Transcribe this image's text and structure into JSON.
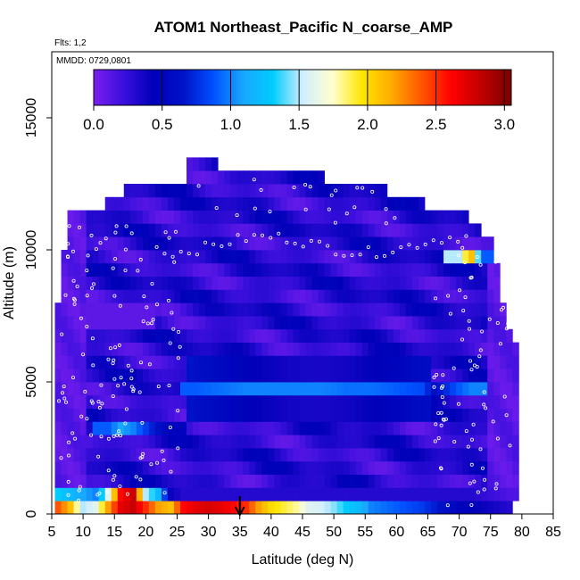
{
  "chart_data": {
    "type": "heatmap",
    "title": "ATOM1 Northeast_Pacific N_coarse_AMP",
    "annotations": {
      "flights": "Flts: 1,2",
      "dates": "MMDD: 0729,0801"
    },
    "xlabel": "Latitude (deg N)",
    "ylabel": "Altitude (m)",
    "xlim": [
      5,
      85
    ],
    "ylim": [
      0,
      17500
    ],
    "xticks": [
      "5",
      "10",
      "15",
      "20",
      "25",
      "30",
      "35",
      "40",
      "45",
      "50",
      "55",
      "60",
      "65",
      "70",
      "75",
      "80",
      "85"
    ],
    "yticks": [
      "0",
      "5000",
      "10000",
      "15000"
    ],
    "colorbar": {
      "ticks": [
        "0.0",
        "0.5",
        "1.0",
        "1.5",
        "2.0",
        "2.5",
        "3.0"
      ],
      "range": [
        0,
        3.05
      ],
      "colors": [
        "#7a1fef",
        "#3a0fdc",
        "#0000b8",
        "#0012c8",
        "#0050ff",
        "#1aa6ff",
        "#00ccff",
        "#cfeeff",
        "#ffffd0",
        "#ffe600",
        "#ffaa00",
        "#ff5500",
        "#ff0000",
        "#c00000",
        "#7a0000"
      ]
    },
    "marker_latitude": 35,
    "grid": false,
    "altitude_bins_m": [
      0,
      500,
      1000,
      1500,
      2000,
      2500,
      3000,
      3500,
      4000,
      4500,
      5000,
      5500,
      6000,
      6500,
      7000,
      7500,
      8000,
      8500,
      9000,
      9500,
      10000,
      10500,
      11000,
      11500,
      12000,
      12500,
      13000
    ],
    "latitude_bin_width": 1,
    "latitude_range_by_band": [
      [
        5.5,
        78.5
      ],
      [
        5.5,
        79.5
      ],
      [
        5.5,
        79.5
      ],
      [
        5.5,
        79.5
      ],
      [
        5.5,
        79.5
      ],
      [
        5.5,
        79.5
      ],
      [
        5.5,
        79.5
      ],
      [
        5.5,
        79.5
      ],
      [
        5.5,
        79.5
      ],
      [
        5.5,
        79.5
      ],
      [
        5.5,
        79.5
      ],
      [
        5.5,
        79.5
      ],
      [
        5.5,
        79.5
      ],
      [
        5.5,
        78.5
      ],
      [
        5.5,
        77.5
      ],
      [
        5.5,
        77.5
      ],
      [
        6.5,
        76.5
      ],
      [
        6.5,
        76.5
      ],
      [
        6.5,
        76.5
      ],
      [
        6.5,
        75.5
      ],
      [
        7.5,
        75.5
      ],
      [
        7.5,
        73.5
      ],
      [
        7.5,
        71.5
      ],
      [
        13.5,
        64.5
      ],
      [
        16.5,
        58.5
      ],
      [
        26.5,
        48.5
      ],
      [
        26.5,
        31.5
      ]
    ],
    "values_by_band": [
      {
        "alt": 0,
        "lat": [
          6,
          8,
          10,
          12,
          14,
          16,
          18,
          20,
          22,
          24,
          26,
          28,
          30,
          32,
          34,
          36,
          38,
          40,
          42,
          44,
          46,
          48,
          50,
          52,
          54,
          56,
          58,
          60,
          62,
          64,
          66,
          68,
          70,
          72,
          74,
          76,
          78
        ],
        "v": [
          2.4,
          2.1,
          1.5,
          1.6,
          2.2,
          2.7,
          2.8,
          2.5,
          2.2,
          2.1,
          2.6,
          2.7,
          2.75,
          2.7,
          2.6,
          2.5,
          2.2,
          2.0,
          1.9,
          1.8,
          1.6,
          1.55,
          1.45,
          1.3,
          1.2,
          1.0,
          0.95,
          0.9,
          0.85,
          0.8,
          0.7,
          0.6,
          0.5,
          0.45,
          0.4,
          0.35,
          0.3
        ]
      },
      {
        "alt": 500,
        "lat": [
          6,
          8,
          10,
          12,
          14,
          16,
          18,
          20,
          22,
          24,
          26,
          28,
          30,
          32,
          34,
          36,
          38,
          40,
          42,
          44,
          46,
          48,
          50,
          52,
          54,
          56,
          58,
          60,
          62,
          64,
          66,
          68,
          70,
          72,
          74,
          76,
          78
        ],
        "v": [
          1.3,
          1.2,
          1.1,
          1.0,
          1.6,
          2.6,
          2.8,
          1.5,
          1.2,
          0.4,
          0.3,
          0.3,
          0.3,
          0.3,
          0.3,
          0.3,
          0.3,
          0.3,
          0.3,
          0.3,
          0.3,
          0.3,
          0.3,
          0.3,
          0.3,
          0.3,
          0.3,
          0.3,
          0.3,
          0.3,
          0.3,
          0.3,
          0.3,
          0.3,
          0.25,
          0.2,
          0.15
        ]
      },
      {
        "alt": 3000,
        "lat": [
          14,
          16,
          18,
          20,
          22,
          24
        ],
        "v": [
          0.9,
          1.1,
          1.0,
          0.8,
          0.6,
          0.5
        ]
      },
      {
        "alt": 4500,
        "lat": [
          28,
          32,
          36,
          40,
          44,
          48,
          52,
          56,
          60,
          64,
          66,
          70,
          72
        ],
        "v": [
          0.9,
          0.95,
          1.0,
          1.0,
          1.0,
          1.0,
          0.95,
          0.95,
          0.9,
          0.85,
          0.6,
          0.9,
          1.0
        ]
      },
      {
        "alt": 9500,
        "lat": [
          70,
          71,
          72,
          73,
          74
        ],
        "v": [
          1.5,
          1.9,
          2.1,
          1.4,
          0.9
        ]
      }
    ]
  }
}
